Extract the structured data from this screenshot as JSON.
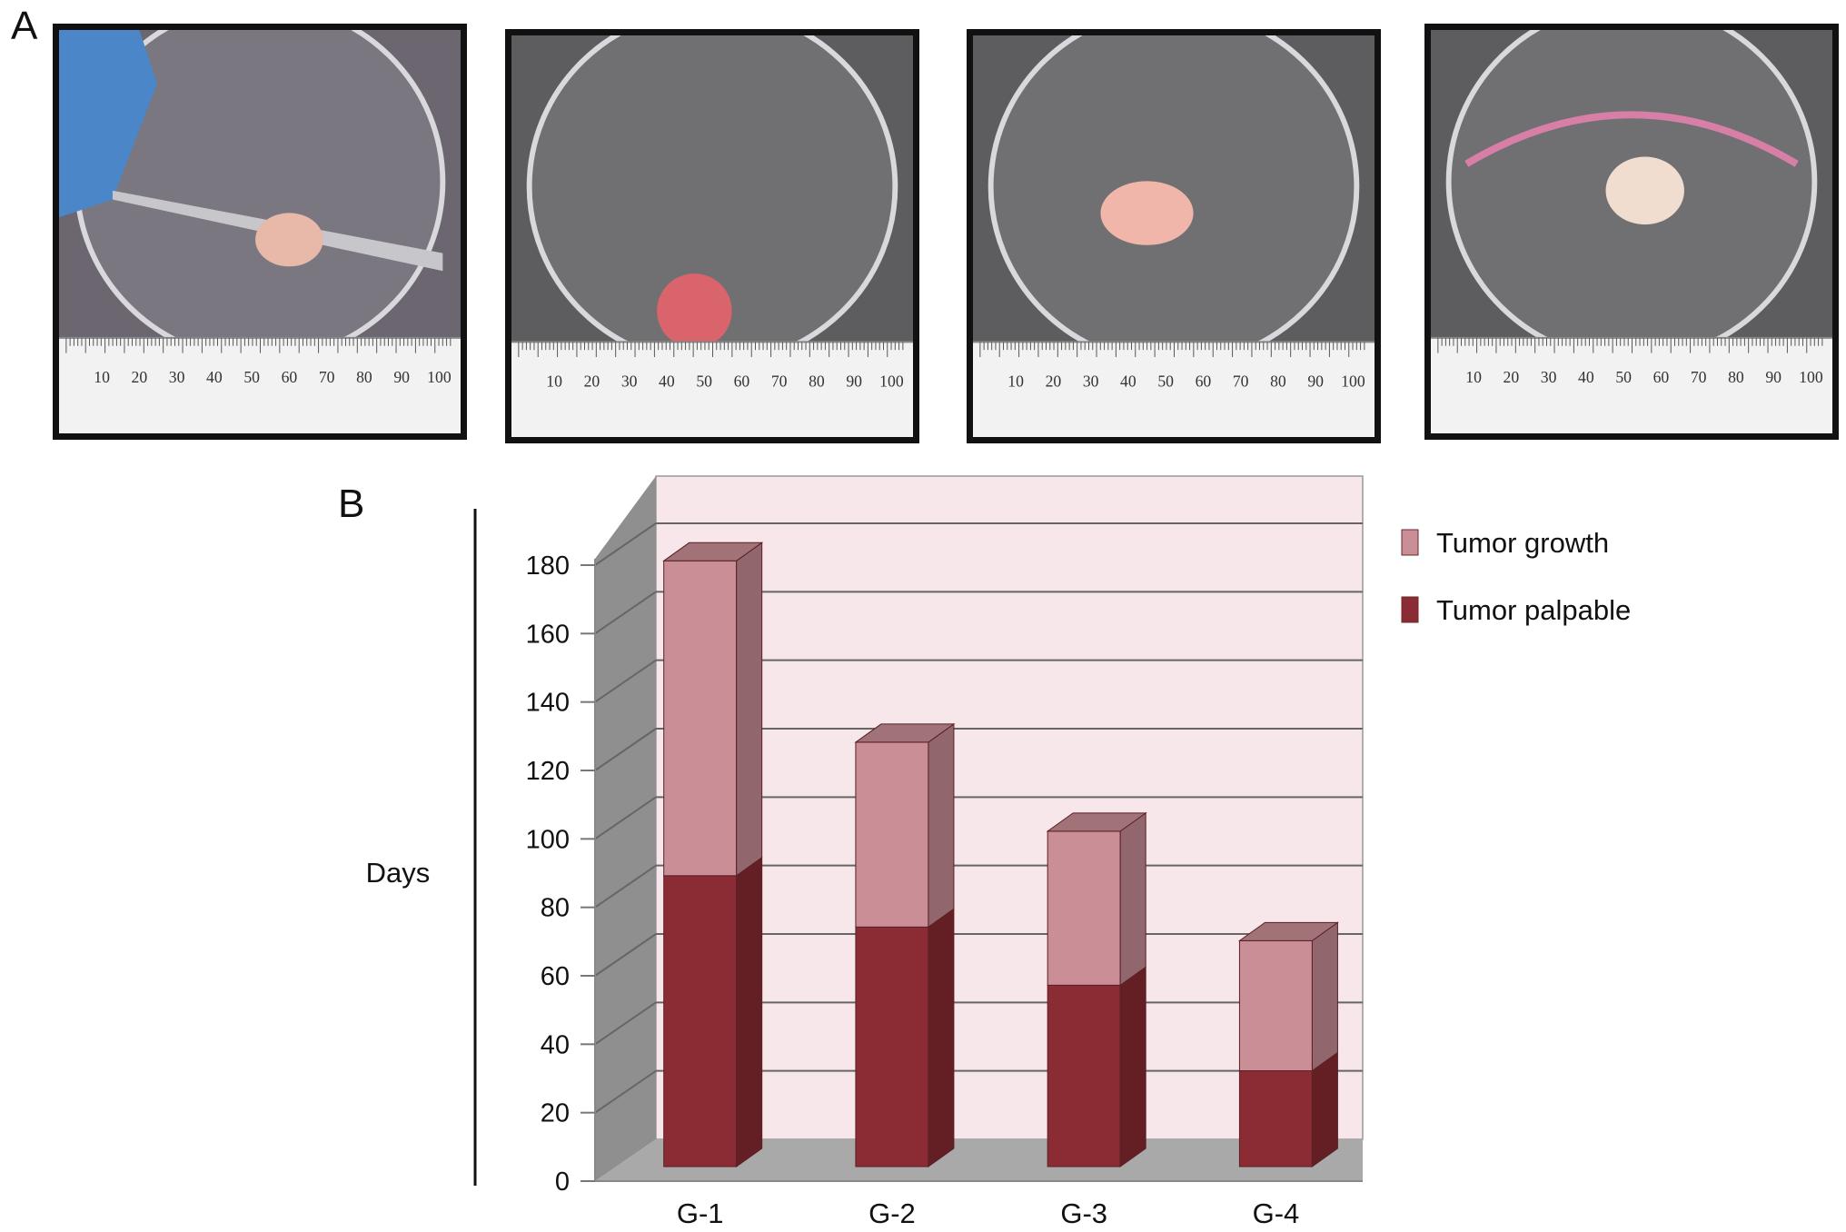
{
  "panels": {
    "a": "A",
    "b": "B"
  },
  "photos": [
    {
      "ruler_numbers": [
        "10",
        "20",
        "30",
        "40",
        "50",
        "60",
        "70",
        "80",
        "90",
        "100"
      ]
    },
    {
      "ruler_numbers": [
        "10",
        "20",
        "30",
        "40",
        "50",
        "60",
        "70",
        "80",
        "90",
        "100"
      ]
    },
    {
      "ruler_numbers": [
        "10",
        "20",
        "30",
        "40",
        "50",
        "60",
        "70",
        "80",
        "90",
        "100"
      ]
    },
    {
      "ruler_numbers": [
        "10",
        "20",
        "30",
        "40",
        "50",
        "60",
        "70",
        "80",
        "90",
        "100"
      ]
    }
  ],
  "chart_data": {
    "type": "bar",
    "stacked": true,
    "three_d": true,
    "categories": [
      "G-1",
      "G-2",
      "G-3",
      "G-4"
    ],
    "series": [
      {
        "name": "Tumor palpable",
        "values": [
          85,
          70,
          53,
          28
        ],
        "color": "#8b2b34"
      },
      {
        "name": "Tumor growth",
        "values": [
          92,
          54,
          45,
          38
        ],
        "color": "#c98e96"
      }
    ],
    "xlabel": "",
    "ylabel": "Days",
    "ylim": [
      0,
      180
    ],
    "yticks": [
      0,
      20,
      40,
      60,
      80,
      100,
      120,
      140,
      160,
      180
    ],
    "grid": true,
    "legend_position": "top-right",
    "colors": {
      "wall": "#f7e7ea",
      "side_wall": "#8f8f8f",
      "floor": "#a9a9a9",
      "grid": "#666666"
    }
  }
}
